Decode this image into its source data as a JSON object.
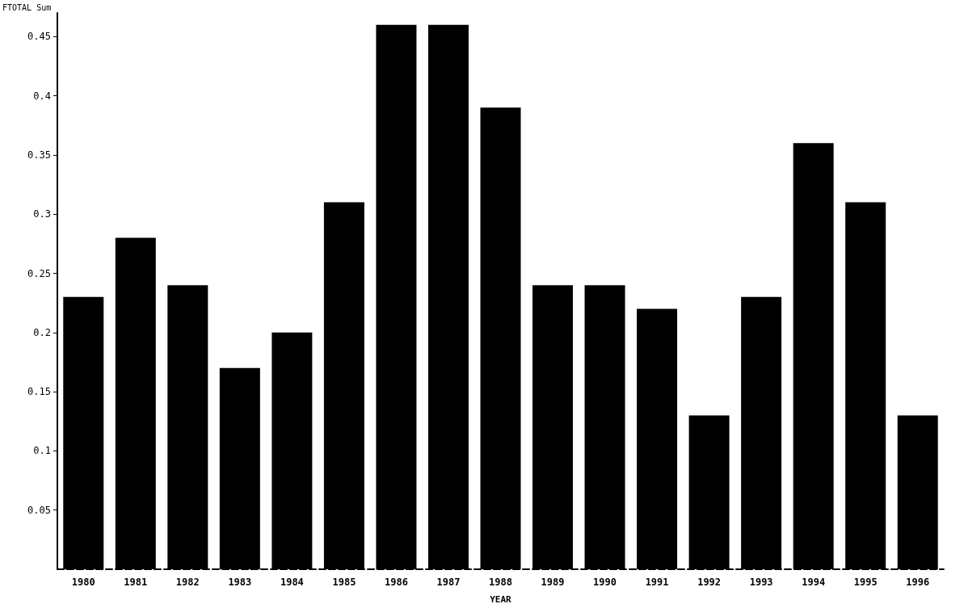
{
  "chart_data": {
    "type": "bar",
    "ylabel": "FTOTAL Sum",
    "xlabel": "YEAR",
    "categories": [
      "1980",
      "1981",
      "1982",
      "1983",
      "1984",
      "1985",
      "1986",
      "1987",
      "1988",
      "1989",
      "1990",
      "1991",
      "1992",
      "1993",
      "1994",
      "1995",
      "1996"
    ],
    "values": [
      0.23,
      0.28,
      0.24,
      0.17,
      0.2,
      0.31,
      0.46,
      0.46,
      0.39,
      0.24,
      0.24,
      0.22,
      0.13,
      0.23,
      0.36,
      0.31,
      0.13
    ],
    "color": "#000000",
    "ylim": [
      0,
      0.47
    ],
    "yticks": [
      0.05,
      0.1,
      0.15,
      0.2,
      0.25,
      0.3,
      0.35,
      0.4,
      0.45
    ],
    "grid": false
  }
}
